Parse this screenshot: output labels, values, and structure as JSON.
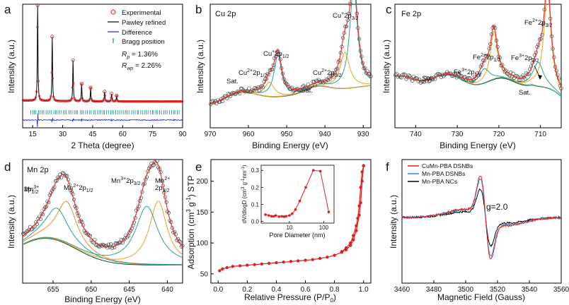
{
  "chart_data": [
    {
      "panel": "a",
      "type": "line",
      "xlabel": "2 Theta (degree)",
      "ylabel": "Intensity (a.u.)",
      "xticks": [
        15,
        30,
        45,
        60,
        75,
        90
      ],
      "xlim": [
        10,
        90
      ],
      "legend": [
        "Experimental",
        "Pawley refined",
        "Difference",
        "Bragg position"
      ],
      "annotations": [
        "R",
        "p",
        " = 1.36%",
        "wp",
        " = 2.26%"
      ],
      "colors": {
        "experimental": "#e02020",
        "refined": "#000000",
        "difference": "#1a1aff",
        "bragg": "#138a8a"
      },
      "peaks": [
        {
          "x": 17.5,
          "h": 0.98
        },
        {
          "x": 24.8,
          "h": 0.66
        },
        {
          "x": 35.2,
          "h": 0.42
        },
        {
          "x": 39.5,
          "h": 0.18
        },
        {
          "x": 44.0,
          "h": 0.14
        },
        {
          "x": 51.0,
          "h": 0.1
        },
        {
          "x": 54.5,
          "h": 0.08
        },
        {
          "x": 57.0,
          "h": 0.06
        }
      ]
    },
    {
      "panel": "b",
      "type": "line",
      "title": "Cu 2p",
      "xlabel": "Binding Energy (eV)",
      "ylabel": "Intensity (a.u.)",
      "xticks": [
        970,
        960,
        950,
        940,
        930
      ],
      "xlim": [
        970,
        928
      ],
      "labels": [
        "Sat.",
        "Cu",
        "2+",
        "2p",
        "1/2",
        "Cu",
        "+",
        "2p",
        "1/2",
        "Sat.",
        "Cu",
        "2+",
        "2p",
        "3/2",
        "Cu",
        "+",
        "2p",
        "3/2"
      ],
      "peaks": [
        {
          "x": 932.5,
          "h": 0.85,
          "w": 1.2
        },
        {
          "x": 934.8,
          "h": 0.3,
          "w": 1.5
        },
        {
          "x": 952.3,
          "h": 0.35,
          "w": 1.2
        },
        {
          "x": 954.5,
          "h": 0.12,
          "w": 1.5
        }
      ]
    },
    {
      "panel": "c",
      "type": "line",
      "title": "Fe 2p",
      "xlabel": "Binding Energy (eV)",
      "ylabel": "Intensity (a.u.)",
      "xticks": [
        740,
        730,
        720,
        710
      ],
      "xlim": [
        745,
        705
      ],
      "labels": [
        "Sat.",
        "Fe",
        "3+",
        "2p",
        "1/2",
        "Fe",
        "2+",
        "2p",
        "1/2",
        "Fe",
        "3+",
        "2p",
        "3/2",
        "Sat.",
        "Fe",
        "2+",
        "2p",
        "3/2"
      ],
      "peaks": [
        {
          "x": 708.3,
          "h": 0.82,
          "w": 1.0
        },
        {
          "x": 710.5,
          "h": 0.2,
          "w": 1.5
        },
        {
          "x": 721.2,
          "h": 0.4,
          "w": 1.0
        },
        {
          "x": 723.5,
          "h": 0.12,
          "w": 1.5
        }
      ]
    },
    {
      "panel": "d",
      "type": "line",
      "title": "Mn 2p",
      "xlabel": "Binding Energy (eV)",
      "ylabel": "Intensity (a.u.)",
      "xticks": [
        655,
        650,
        645,
        640
      ],
      "xlim": [
        659,
        638
      ],
      "labels": [
        "Mn",
        "3+",
        "2p",
        "1/2",
        "Mn",
        "2+",
        "2p",
        "1/2",
        "Mn",
        "3+",
        "2p",
        "3/2",
        "Mn",
        "2+",
        "2p",
        "3/2"
      ],
      "peaks": [
        {
          "x": 641.2,
          "h": 0.6,
          "w": 1.4
        },
        {
          "x": 642.7,
          "h": 0.55,
          "w": 1.8
        },
        {
          "x": 653.2,
          "h": 0.4,
          "w": 1.6
        },
        {
          "x": 654.5,
          "h": 0.3,
          "w": 1.8
        }
      ]
    },
    {
      "panel": "e",
      "type": "line",
      "xlabel": "Relative Pressure (P/P",
      "xlabel_sub": "0",
      "ylabel": "Adsorption (cm",
      "ylabel_parts": [
        "Adsorption (cm",
        "3",
        " g",
        "-1",
        ") STP"
      ],
      "xticks": [
        0.0,
        0.2,
        0.4,
        0.6,
        0.8,
        1.0
      ],
      "yticks": [
        50,
        100,
        150,
        200
      ],
      "xlim": [
        -0.05,
        1.05
      ],
      "ylim": [
        35,
        235
      ],
      "adsorption_x": [
        0.01,
        0.03,
        0.06,
        0.1,
        0.15,
        0.2,
        0.25,
        0.3,
        0.35,
        0.4,
        0.45,
        0.5,
        0.55,
        0.6,
        0.65,
        0.7,
        0.75,
        0.8,
        0.85,
        0.88,
        0.91,
        0.93,
        0.95,
        0.97,
        0.98,
        0.99,
        1.0
      ],
      "adsorption_y": [
        55,
        58,
        60,
        62,
        63,
        64,
        65,
        66,
        67,
        68,
        69,
        70,
        71,
        72,
        73,
        75,
        77,
        80,
        85,
        89,
        96,
        105,
        120,
        145,
        165,
        200,
        225
      ],
      "desorption_x": [
        1.0,
        0.99,
        0.98,
        0.97,
        0.96,
        0.95,
        0.93,
        0.91,
        0.88,
        0.85
      ],
      "desorption_y": [
        225,
        215,
        190,
        160,
        140,
        128,
        112,
        100,
        92,
        86
      ],
      "inset": {
        "type": "line",
        "xlabel": "Pore Diameter (nm)",
        "ylabel_parts": [
          "dV/dlogD (cm",
          "3",
          " g",
          "-1",
          "nm",
          "-1",
          ")"
        ],
        "xscale": "log",
        "xticks": [
          10,
          100
        ],
        "yticks": [
          0.0,
          0.1,
          0.2,
          0.3
        ],
        "xlim": [
          1.5,
          200
        ],
        "ylim": [
          -0.01,
          0.33
        ],
        "x": [
          2,
          2.5,
          3,
          3.5,
          4,
          5,
          6,
          7,
          8,
          10,
          12,
          15,
          20,
          30,
          50,
          80,
          140
        ],
        "y": [
          0.04,
          0.035,
          0.03,
          0.03,
          0.035,
          0.028,
          0.03,
          0.028,
          0.03,
          0.035,
          0.045,
          0.07,
          0.12,
          0.2,
          0.3,
          0.295,
          0.055
        ]
      }
    },
    {
      "panel": "f",
      "type": "line",
      "xlabel": "Magnetic Field (Gauss)",
      "ylabel": "Intensity (a.u.)",
      "xticks": [
        3460,
        3480,
        3500,
        3520,
        3540,
        3560
      ],
      "xlim": [
        3460,
        3560
      ],
      "annotation": "g=2.0",
      "series": [
        {
          "name": "CuMn-PBA DSNBs",
          "color": "#e82020",
          "amp": 1.0
        },
        {
          "name": "Mn-PBA DSNBs",
          "color": "#2b8fe0",
          "amp": 0.92
        },
        {
          "name": "Mn-PBA NCs",
          "color": "#000000",
          "amp": 0.68
        }
      ]
    }
  ],
  "panel_letters": [
    "a",
    "b",
    "c",
    "d",
    "e",
    "f"
  ]
}
